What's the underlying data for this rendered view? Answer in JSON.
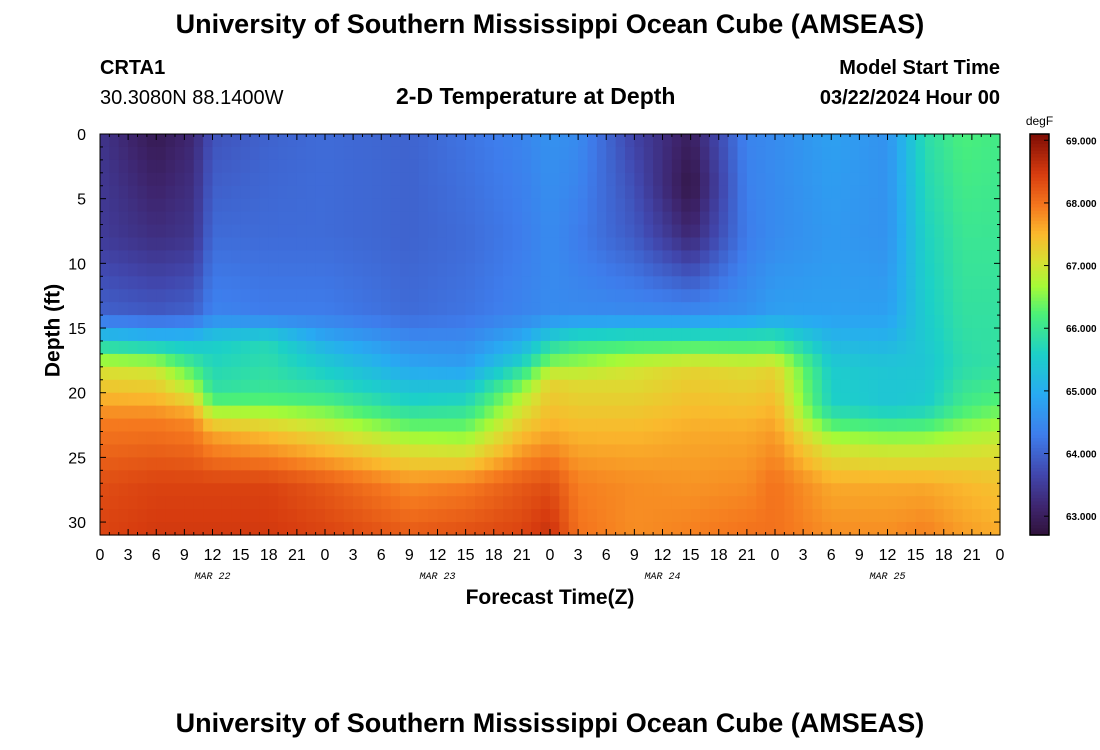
{
  "titles": {
    "top": "University of Southern Mississippi Ocean Cube (AMSEAS)",
    "bottom": "University of Southern Mississippi Ocean Cube (AMSEAS)"
  },
  "station": {
    "id": "CRTA1",
    "coords": "30.3080N  88.1400W"
  },
  "model": {
    "label": "Model Start Time",
    "value": "03/22/2024 Hour 00"
  },
  "chart_data": {
    "type": "heatmap",
    "title": "2-D Temperature at Depth",
    "xlabel": "Forecast Time(Z)",
    "ylabel": "Depth (ft)",
    "x_tick_labels": [
      "0",
      "3",
      "6",
      "9",
      "12",
      "15",
      "18",
      "21",
      "0",
      "3",
      "6",
      "9",
      "12",
      "15",
      "18",
      "21",
      "0",
      "3",
      "6",
      "9",
      "12",
      "15",
      "18",
      "21",
      "0",
      "3",
      "6",
      "9",
      "12",
      "15",
      "18",
      "21",
      "0"
    ],
    "x_hours": [
      0,
      3,
      6,
      9,
      12,
      15,
      18,
      21,
      24,
      27,
      30,
      33,
      36,
      39,
      42,
      45,
      48,
      51,
      54,
      57,
      60,
      63,
      66,
      69,
      72,
      75,
      78,
      81,
      84,
      87,
      90,
      93,
      96
    ],
    "date_labels": [
      {
        "label": "MAR 22",
        "hour": 12
      },
      {
        "label": "MAR 23",
        "hour": 36
      },
      {
        "label": "MAR 24",
        "hour": 60
      },
      {
        "label": "MAR 25",
        "hour": 84
      }
    ],
    "xlim": [
      0,
      96
    ],
    "ylim": [
      0,
      31
    ],
    "y_ticks": [
      0,
      5,
      10,
      15,
      20,
      25,
      30
    ],
    "y_tick_labels": [
      "0",
      "5",
      "10",
      "15",
      "20",
      "25",
      "30"
    ],
    "colorbar": {
      "unit": "degF",
      "min": 62.7,
      "max": 69.1,
      "ticks": [
        63,
        64,
        65,
        66,
        67,
        68,
        69
      ],
      "tick_labels": [
        "63.000",
        "64.000",
        "65.000",
        "66.000",
        "67.000",
        "68.000",
        "69.000"
      ]
    },
    "profiles": [
      {
        "hour": 0,
        "depth": [
          0,
          8,
          14,
          16,
          18,
          22,
          27,
          31
        ],
        "temp": [
          63.4,
          63.5,
          64.0,
          65.5,
          67.0,
          67.9,
          68.3,
          68.4
        ]
      },
      {
        "hour": 6,
        "depth": [
          0,
          8,
          14,
          16,
          18,
          22,
          27,
          31
        ],
        "temp": [
          62.9,
          63.3,
          63.9,
          65.3,
          66.9,
          67.9,
          68.4,
          68.5
        ]
      },
      {
        "hour": 10,
        "depth": [
          0,
          8,
          14,
          16,
          19,
          22,
          27,
          31
        ],
        "temp": [
          63.2,
          63.4,
          64.0,
          65.3,
          66.5,
          67.8,
          68.4,
          68.5
        ]
      },
      {
        "hour": 12,
        "depth": [
          0,
          8,
          14,
          16,
          20,
          23,
          27,
          31
        ],
        "temp": [
          63.8,
          64.1,
          64.4,
          65.5,
          65.9,
          67.6,
          68.4,
          68.5
        ]
      },
      {
        "hour": 18,
        "depth": [
          0,
          8,
          14,
          16,
          20,
          23,
          27,
          31
        ],
        "temp": [
          64.0,
          64.1,
          64.3,
          65.7,
          66.0,
          67.4,
          68.4,
          68.5
        ]
      },
      {
        "hour": 24,
        "depth": [
          0,
          8,
          14,
          17,
          20,
          23,
          27,
          31
        ],
        "temp": [
          64.1,
          64.1,
          64.3,
          65.3,
          65.9,
          67.1,
          68.2,
          68.4
        ]
      },
      {
        "hour": 33,
        "depth": [
          0,
          8,
          14,
          18,
          21,
          24,
          27,
          31
        ],
        "temp": [
          64.0,
          64.0,
          64.1,
          64.9,
          65.7,
          66.9,
          67.8,
          68.2
        ]
      },
      {
        "hour": 39,
        "depth": [
          0,
          8,
          14,
          18,
          21,
          24,
          27,
          31
        ],
        "temp": [
          64.2,
          64.1,
          64.2,
          64.8,
          65.8,
          66.8,
          67.9,
          68.3
        ]
      },
      {
        "hour": 45,
        "depth": [
          0,
          8,
          14,
          17,
          20,
          23,
          27,
          31
        ],
        "temp": [
          64.4,
          64.3,
          64.4,
          65.3,
          66.7,
          67.4,
          68.2,
          68.4
        ]
      },
      {
        "hour": 48,
        "depth": [
          0,
          8,
          14,
          16,
          19,
          23,
          27,
          31
        ],
        "temp": [
          64.6,
          64.5,
          64.5,
          65.6,
          67.2,
          67.6,
          68.3,
          68.6
        ]
      },
      {
        "hour": 51,
        "depth": [
          0,
          8,
          14,
          16,
          19,
          23,
          27,
          31
        ],
        "temp": [
          64.5,
          64.3,
          64.5,
          65.9,
          67.1,
          67.5,
          67.9,
          68.0
        ]
      },
      {
        "hour": 57,
        "depth": [
          0,
          8,
          14,
          16,
          18,
          23,
          27,
          31
        ],
        "temp": [
          63.6,
          63.9,
          64.5,
          66.0,
          67.0,
          67.5,
          67.8,
          67.8
        ]
      },
      {
        "hour": 63,
        "depth": [
          0,
          4,
          8,
          14,
          16,
          18,
          23,
          31
        ],
        "temp": [
          63.0,
          62.8,
          63.2,
          64.5,
          66.0,
          67.2,
          67.6,
          67.9
        ]
      },
      {
        "hour": 69,
        "depth": [
          0,
          8,
          14,
          16,
          18,
          23,
          27,
          31
        ],
        "temp": [
          64.4,
          64.3,
          64.6,
          66.0,
          67.1,
          67.6,
          67.8,
          68.0
        ]
      },
      {
        "hour": 72,
        "depth": [
          0,
          8,
          14,
          16,
          18,
          23,
          27,
          31
        ],
        "temp": [
          64.5,
          64.5,
          64.8,
          66.0,
          67.2,
          67.7,
          68.0,
          68.0
        ]
      },
      {
        "hour": 78,
        "depth": [
          0,
          8,
          14,
          18,
          21,
          24,
          27,
          31
        ],
        "temp": [
          64.8,
          64.7,
          64.8,
          65.5,
          65.6,
          66.9,
          67.6,
          67.8
        ]
      },
      {
        "hour": 84,
        "depth": [
          0,
          8,
          14,
          18,
          21,
          24,
          27,
          31
        ],
        "temp": [
          64.6,
          64.6,
          64.8,
          65.4,
          65.4,
          66.8,
          67.6,
          67.8
        ]
      },
      {
        "hour": 88,
        "depth": [
          0,
          8,
          14,
          18,
          21,
          24,
          27,
          31
        ],
        "temp": [
          65.8,
          65.6,
          65.5,
          65.4,
          65.5,
          66.8,
          67.6,
          67.9
        ]
      },
      {
        "hour": 92,
        "depth": [
          0,
          8,
          14,
          18,
          21,
          24,
          27,
          31
        ],
        "temp": [
          66.2,
          66.0,
          65.9,
          65.8,
          66.1,
          66.9,
          67.5,
          67.7
        ]
      },
      {
        "hour": 96,
        "depth": [
          0,
          8,
          14,
          18,
          21,
          24,
          27,
          31
        ],
        "temp": [
          66.1,
          66.0,
          65.9,
          65.9,
          66.3,
          67.0,
          67.4,
          67.6
        ]
      }
    ]
  }
}
